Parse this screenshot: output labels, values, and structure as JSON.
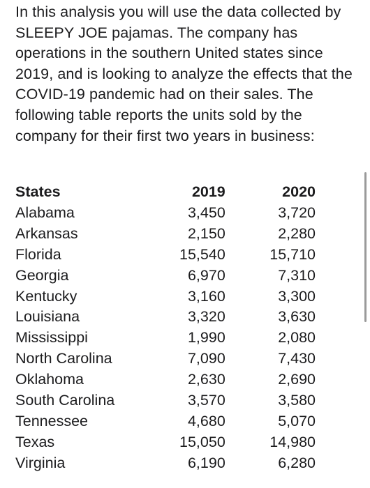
{
  "intro": "In this analysis you will use the data collected by SLEEPY JOE pajamas. The company has operations in the southern United states since 2019, and is looking to analyze the effects that the COVID-19 pandemic had on their sales. The following table reports the units sold by the company for their first two years in business:",
  "table": {
    "headers": [
      "States",
      "2019",
      "2020"
    ],
    "rows": [
      [
        "Alabama",
        "3,450",
        "3,720"
      ],
      [
        "Arkansas",
        "2,150",
        "2,280"
      ],
      [
        "Florida",
        "15,540",
        "15,710"
      ],
      [
        "Georgia",
        "6,970",
        "7,310"
      ],
      [
        "Kentucky",
        "3,160",
        "3,300"
      ],
      [
        "Louisiana",
        "3,320",
        "3,630"
      ],
      [
        "Mississippi",
        "1,990",
        "2,080"
      ],
      [
        "North Carolina",
        "7,090",
        "7,430"
      ],
      [
        "Oklahoma",
        "2,630",
        "2,690"
      ],
      [
        "South Carolina",
        "3,570",
        "3,580"
      ],
      [
        "Tennessee",
        "4,680",
        "5,070"
      ],
      [
        "Texas",
        "15,050",
        "14,980"
      ],
      [
        "Virginia",
        "6,190",
        "6,280"
      ]
    ]
  }
}
